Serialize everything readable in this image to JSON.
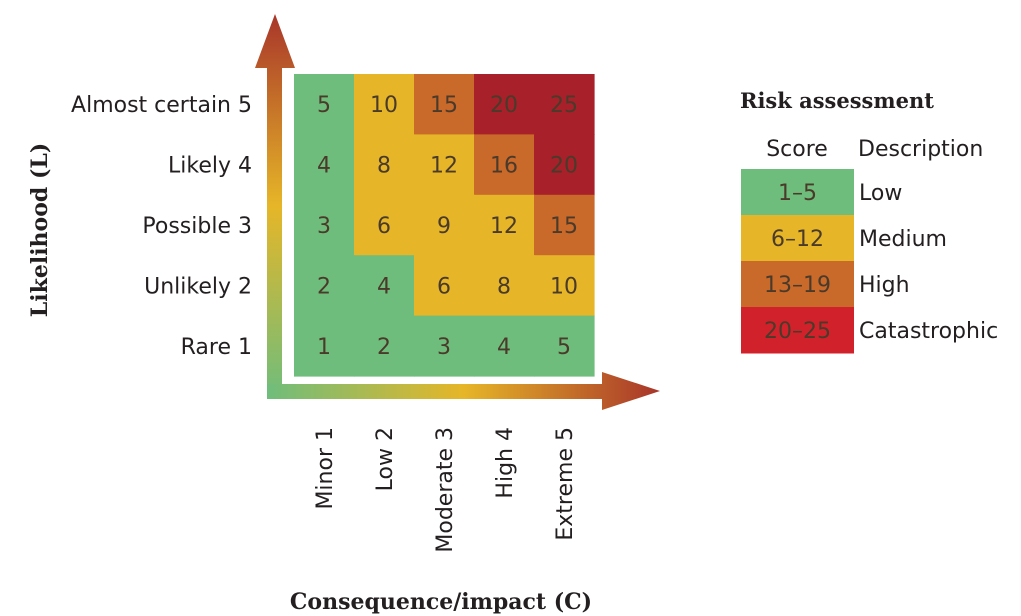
{
  "matrix": {
    "rows": [
      {
        "label": "Almost certain 5",
        "values": [
          "5",
          "10",
          "15",
          "20",
          "25"
        ],
        "levels": [
          "low",
          "medium",
          "high",
          "catastrophic",
          "catastrophic"
        ]
      },
      {
        "label": "Likely 4",
        "values": [
          "4",
          "8",
          "12",
          "16",
          "20"
        ],
        "levels": [
          "low",
          "medium",
          "medium",
          "high",
          "catastrophic"
        ]
      },
      {
        "label": "Possible 3",
        "values": [
          "3",
          "6",
          "9",
          "12",
          "15"
        ],
        "levels": [
          "low",
          "medium",
          "medium",
          "medium",
          "high"
        ]
      },
      {
        "label": "Unlikely 2",
        "values": [
          "2",
          "4",
          "6",
          "8",
          "10"
        ],
        "levels": [
          "low",
          "low",
          "medium",
          "medium",
          "medium"
        ]
      },
      {
        "label": "Rare 1",
        "values": [
          "1",
          "2",
          "3",
          "4",
          "5"
        ],
        "levels": [
          "low",
          "low",
          "low",
          "low",
          "low"
        ]
      }
    ],
    "columns": [
      "Minor 1",
      "Low 2",
      "Moderate 3",
      "High 4",
      "Extreme 5"
    ]
  },
  "axes": {
    "y_title": "Likelihood (L)",
    "x_title": "Consequence/impact (C)"
  },
  "legend": {
    "title": "Risk assessment",
    "score_header": "Score",
    "description_header": "Description",
    "items": [
      {
        "score": "1–5",
        "description": "Low",
        "level": "low"
      },
      {
        "score": "6–12",
        "description": "Medium",
        "level": "medium"
      },
      {
        "score": "13–19",
        "description": "High",
        "level": "high"
      },
      {
        "score": "20–25",
        "description": "Catastrophic",
        "level": "catastrophic"
      }
    ]
  },
  "colors": {
    "low": "#6fbd7c",
    "medium": "#e6b628",
    "high": "#c9692a",
    "catastrophic": "#a8202a",
    "legend_catastrophic": "#d1222c",
    "arrow_start": "#6fbd7c",
    "arrow_mid": "#e6b628",
    "arrow_end": "#a8352a"
  }
}
